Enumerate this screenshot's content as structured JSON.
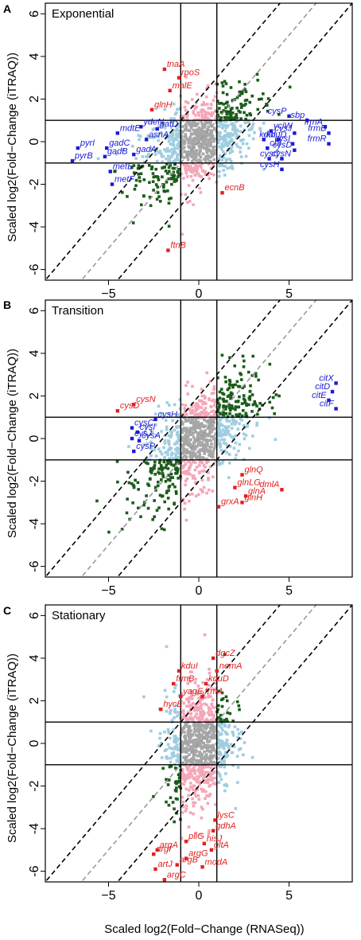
{
  "figure": {
    "xlabel": "Scaled log2(Fold−Change (RNASeq))",
    "ylabel": "Scaled log2(Fold−Change (iTRAQ))"
  },
  "colors": {
    "grey": "#a6a6a6",
    "pink": "#f4a6b7",
    "lightblue": "#9fcde0",
    "darkgreen": "#1a5c1a",
    "red": "#e02020",
    "blue": "#1a1ad6"
  },
  "chart_data": [
    {
      "type": "scatter",
      "letter": "A",
      "title": "Exponential",
      "xlim": [
        -8.5,
        8.5
      ],
      "ylim": [
        -6.5,
        6.5
      ],
      "xticks": [
        -5,
        0,
        5
      ],
      "yticks": [
        -6,
        -4,
        -2,
        0,
        2,
        4,
        6
      ],
      "hlines": [
        1,
        -1
      ],
      "vlines": [
        -1,
        1
      ],
      "diagonals": [
        {
          "style": "black-dashed",
          "intercept": 2
        },
        {
          "style": "grey-dashed",
          "intercept": 0
        },
        {
          "style": "black-dashed",
          "intercept": -2
        }
      ],
      "labeled_points": [
        {
          "gene": "tnaA",
          "x": -1.9,
          "y": 3.4,
          "color": "red"
        },
        {
          "gene": "rpoS",
          "x": -1.1,
          "y": 3.0,
          "color": "red"
        },
        {
          "gene": "malE",
          "x": -1.6,
          "y": 2.4,
          "color": "red"
        },
        {
          "gene": "glnH",
          "x": -2.6,
          "y": 1.5,
          "color": "red"
        },
        {
          "gene": "ecnB",
          "x": 1.3,
          "y": -2.4,
          "color": "red"
        },
        {
          "gene": "ftnB",
          "x": -1.7,
          "y": -5.1,
          "color": "red"
        },
        {
          "gene": "ydeN",
          "x": -3.2,
          "y": 0.7,
          "color": "blue"
        },
        {
          "gene": "gatD",
          "x": -2.3,
          "y": 0.6,
          "color": "blue"
        },
        {
          "gene": "mdtE",
          "x": -4.5,
          "y": 0.4,
          "color": "blue"
        },
        {
          "gene": "asnA",
          "x": -2.9,
          "y": 0.1,
          "color": "blue"
        },
        {
          "gene": "pyrI",
          "x": -6.7,
          "y": -0.3,
          "color": "blue"
        },
        {
          "gene": "gadC",
          "x": -5.1,
          "y": -0.3,
          "color": "blue"
        },
        {
          "gene": "gadB",
          "x": -5.2,
          "y": -0.7,
          "color": "blue"
        },
        {
          "gene": "gadA",
          "x": -3.6,
          "y": -0.6,
          "color": "blue"
        },
        {
          "gene": "pyrB",
          "x": -7.0,
          "y": -0.9,
          "color": "blue"
        },
        {
          "gene": "metE",
          "x": -4.9,
          "y": -1.4,
          "color": "blue"
        },
        {
          "gene": "metF",
          "x": -4.8,
          "y": -2.0,
          "color": "blue"
        },
        {
          "gene": "cysP",
          "x": 5.0,
          "y": 1.2,
          "color": "blue"
        },
        {
          "gene": "sbp",
          "x": 6.0,
          "y": 1.0,
          "color": "blue"
        },
        {
          "gene": "frmA",
          "x": 7.0,
          "y": 0.7,
          "color": "blue"
        },
        {
          "gene": "frmB",
          "x": 7.2,
          "y": 0.4,
          "color": "blue"
        },
        {
          "gene": "frmR",
          "x": 7.2,
          "y": -0.1,
          "color": "blue"
        },
        {
          "gene": "yciW",
          "x": 4.0,
          "y": 0.5,
          "color": "blue"
        },
        {
          "gene": "cysJ",
          "x": 5.3,
          "y": 0.4,
          "color": "blue"
        },
        {
          "gene": "kduD",
          "x": 3.6,
          "y": 0.1,
          "color": "blue"
        },
        {
          "gene": "kduI",
          "x": 4.4,
          "y": 0.1,
          "color": "blue"
        },
        {
          "gene": "cysI",
          "x": 5.2,
          "y": -0.1,
          "color": "blue"
        },
        {
          "gene": "cbl",
          "x": 3.8,
          "y": -0.3,
          "color": "blue"
        },
        {
          "gene": "cysD",
          "x": 5.3,
          "y": -0.4,
          "color": "blue"
        },
        {
          "gene": "cysN",
          "x": 3.9,
          "y": -0.8,
          "color": "blue"
        },
        {
          "gene": "cysC",
          "x": 4.6,
          "y": -0.8,
          "color": "blue"
        },
        {
          "gene": "cysH",
          "x": 4.6,
          "y": -1.3,
          "color": "blue"
        }
      ]
    },
    {
      "type": "scatter",
      "letter": "B",
      "title": "Transition",
      "xlim": [
        -8.5,
        8.5
      ],
      "ylim": [
        -6.5,
        6.5
      ],
      "xticks": [
        -5,
        0,
        5
      ],
      "yticks": [
        -6,
        -4,
        -2,
        0,
        2,
        4,
        6
      ],
      "hlines": [
        1,
        -1
      ],
      "vlines": [
        -1,
        1
      ],
      "diagonals": [
        {
          "style": "black-dashed",
          "intercept": 2
        },
        {
          "style": "grey-dashed",
          "intercept": 0
        },
        {
          "style": "black-dashed",
          "intercept": -2
        }
      ],
      "labeled_points": [
        {
          "gene": "cysD",
          "x": -4.5,
          "y": 1.3,
          "color": "red"
        },
        {
          "gene": "cysN",
          "x": -3.6,
          "y": 1.6,
          "color": "red"
        },
        {
          "gene": "cysH",
          "x": -2.4,
          "y": 0.9,
          "color": "blue"
        },
        {
          "gene": "cysC",
          "x": -3.7,
          "y": 0.5,
          "color": "blue"
        },
        {
          "gene": "cysI",
          "x": -3.4,
          "y": 0.3,
          "color": "blue"
        },
        {
          "gene": "cysJ",
          "x": -3.7,
          "y": 0.0,
          "color": "blue"
        },
        {
          "gene": "cysA",
          "x": -3.3,
          "y": -0.1,
          "color": "blue"
        },
        {
          "gene": "cysP",
          "x": -3.6,
          "y": -0.6,
          "color": "blue"
        },
        {
          "gene": "citX",
          "x": 7.6,
          "y": 2.6,
          "color": "blue"
        },
        {
          "gene": "citD",
          "x": 7.4,
          "y": 2.2,
          "color": "blue"
        },
        {
          "gene": "citE",
          "x": 7.2,
          "y": 1.8,
          "color": "blue"
        },
        {
          "gene": "citF",
          "x": 7.6,
          "y": 1.4,
          "color": "blue"
        },
        {
          "gene": "glnQ",
          "x": 2.4,
          "y": -1.7,
          "color": "red"
        },
        {
          "gene": "glnLG",
          "x": 2.0,
          "y": -2.3,
          "color": "red"
        },
        {
          "gene": "glnA",
          "x": 2.6,
          "y": -2.7,
          "color": "red"
        },
        {
          "gene": "glnH",
          "x": 2.4,
          "y": -3.0,
          "color": "red"
        },
        {
          "gene": "grxA",
          "x": 1.1,
          "y": -3.2,
          "color": "red"
        },
        {
          "gene": "dmlA",
          "x": 4.6,
          "y": -2.4,
          "color": "red"
        }
      ]
    },
    {
      "type": "scatter",
      "letter": "C",
      "title": "Stationary",
      "xlim": [
        -8.5,
        8.5
      ],
      "ylim": [
        -6.5,
        6.5
      ],
      "xticks": [
        -5,
        0,
        5
      ],
      "yticks": [
        -6,
        -4,
        -2,
        0,
        2,
        4,
        6
      ],
      "hlines": [
        1,
        -1
      ],
      "vlines": [
        -1,
        1
      ],
      "diagonals": [
        {
          "style": "black-dashed",
          "intercept": 2
        },
        {
          "style": "grey-dashed",
          "intercept": 0
        },
        {
          "style": "black-dashed",
          "intercept": -2
        }
      ],
      "labeled_points": [
        {
          "gene": "dgcZ",
          "x": 0.8,
          "y": 4.0,
          "color": "red"
        },
        {
          "gene": "kduI",
          "x": -1.1,
          "y": 3.4,
          "color": "red"
        },
        {
          "gene": "nemA",
          "x": 1.0,
          "y": 3.4,
          "color": "red"
        },
        {
          "gene": "frmB",
          "x": -1.4,
          "y": 2.8,
          "color": "red"
        },
        {
          "gene": "kduD",
          "x": 0.4,
          "y": 2.8,
          "color": "red"
        },
        {
          "gene": "yagE",
          "x": -1.0,
          "y": 2.2,
          "color": "red"
        },
        {
          "gene": "frmA",
          "x": 0.2,
          "y": 2.2,
          "color": "red"
        },
        {
          "gene": "hycE",
          "x": -2.1,
          "y": 1.6,
          "color": "red"
        },
        {
          "gene": "lysC",
          "x": 0.9,
          "y": -3.6,
          "color": "red"
        },
        {
          "gene": "gdhA",
          "x": 0.8,
          "y": -4.1,
          "color": "red"
        },
        {
          "gene": "pliG",
          "x": -0.7,
          "y": -4.6,
          "color": "red"
        },
        {
          "gene": "hisJ",
          "x": 0.3,
          "y": -4.7,
          "color": "red"
        },
        {
          "gene": "gltA",
          "x": 0.7,
          "y": -5.0,
          "color": "red"
        },
        {
          "gene": "argA",
          "x": -2.3,
          "y": -5.0,
          "color": "red"
        },
        {
          "gene": "argI",
          "x": -2.5,
          "y": -5.2,
          "color": "red"
        },
        {
          "gene": "argG",
          "x": -0.7,
          "y": -5.4,
          "color": "red"
        },
        {
          "gene": "argB",
          "x": -1.2,
          "y": -5.7,
          "color": "red"
        },
        {
          "gene": "artJ",
          "x": -2.4,
          "y": -5.9,
          "color": "red"
        },
        {
          "gene": "modA",
          "x": 0.2,
          "y": -5.8,
          "color": "red"
        },
        {
          "gene": "argC",
          "x": -1.9,
          "y": -6.4,
          "color": "red"
        }
      ]
    }
  ]
}
